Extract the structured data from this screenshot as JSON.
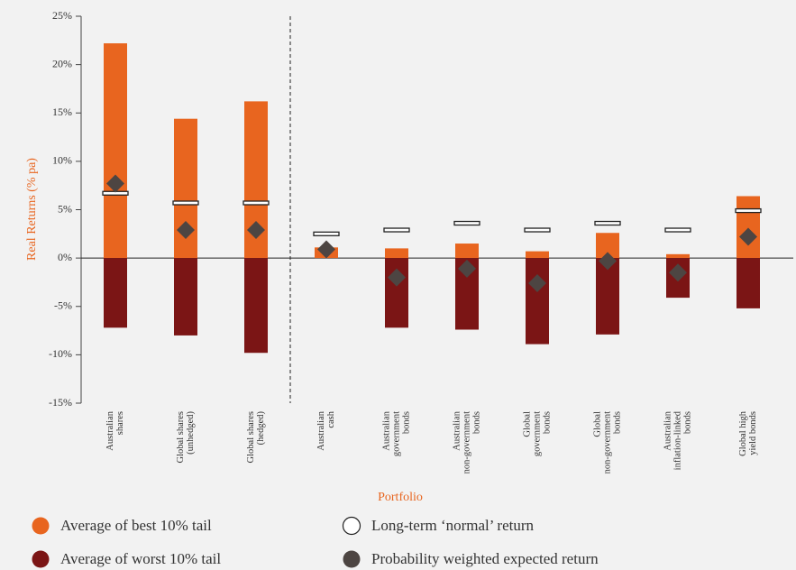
{
  "chart_data": {
    "type": "bar",
    "y_label": "Real Returns (% pa)",
    "x_label": "Portfolio",
    "categories": [
      [
        "Australian",
        "shares"
      ],
      [
        "Global shares",
        "(unhedged)"
      ],
      [
        "Global shares",
        "(hedged)"
      ],
      [
        "Australian",
        "cash"
      ],
      [
        "Australian",
        "government",
        "bonds"
      ],
      [
        "Australian",
        "non-government",
        "bonds"
      ],
      [
        "Global",
        "government",
        "bonds"
      ],
      [
        "Global",
        "non-government",
        "bonds"
      ],
      [
        "Australian",
        "inflation-linked",
        "bonds"
      ],
      [
        "Global high",
        "yield bonds"
      ]
    ],
    "series": [
      {
        "name": "Average of best 10% tail",
        "color": "#e8651f",
        "mark": "bar",
        "values": [
          22.2,
          14.4,
          16.2,
          1.1,
          1.0,
          1.5,
          0.7,
          2.6,
          0.4,
          6.4
        ]
      },
      {
        "name": "Average of worst 10% tail",
        "color": "#7b1515",
        "mark": "bar",
        "values": [
          -7.2,
          -8.0,
          -9.8,
          0,
          -7.2,
          -7.4,
          -8.9,
          -7.9,
          -4.1,
          -5.2
        ]
      },
      {
        "name": "Long-term ‘normal’ return",
        "color": "#ffffff",
        "mark": "dash",
        "values": [
          6.7,
          5.7,
          5.7,
          2.5,
          2.9,
          3.6,
          2.9,
          3.6,
          2.9,
          4.9
        ]
      },
      {
        "name": "Probability weighted expected return",
        "color": "#4d4542",
        "mark": "diamond",
        "values": [
          7.7,
          2.9,
          2.9,
          0.9,
          -2.0,
          -1.1,
          -2.6,
          -0.3,
          -1.5,
          2.2
        ]
      }
    ],
    "ylim": [
      -15,
      25
    ],
    "yticks": [
      {
        "value": -15,
        "label": "-15%"
      },
      {
        "value": -10,
        "label": "-10%"
      },
      {
        "value": -5,
        "label": "-5%"
      },
      {
        "value": 0,
        "label": "0%"
      },
      {
        "value": 5,
        "label": "5%"
      },
      {
        "value": 10,
        "label": "10%"
      },
      {
        "value": 15,
        "label": "15%"
      },
      {
        "value": 20,
        "label": "20%"
      },
      {
        "value": 25,
        "label": "25%"
      }
    ]
  }
}
